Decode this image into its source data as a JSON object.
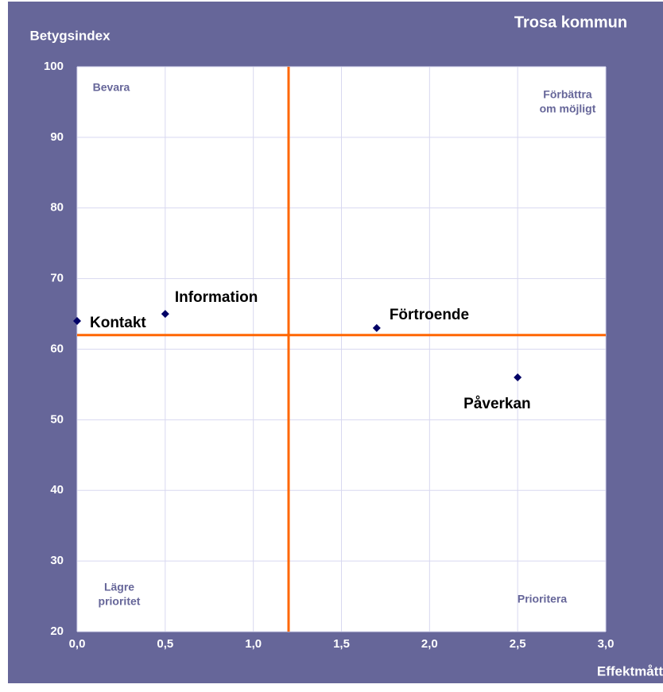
{
  "chart_data": {
    "type": "scatter",
    "title": "Trosa kommun",
    "y_label": "Betygsindex",
    "x_label": "Effektmått",
    "series": [
      {
        "names": [
          "Kontakt",
          "Information",
          "Förtroende",
          "Påverkan"
        ],
        "color": "#000066",
        "x": [
          0,
          0.5,
          1.7,
          2.5
        ],
        "values": [
          64,
          65,
          63,
          56
        ]
      }
    ],
    "xlim": [
      0,
      3
    ],
    "ylim": [
      20,
      100
    ],
    "xticks": [
      {
        "value": 0,
        "label": "0,0"
      },
      {
        "value": 0.5,
        "label": "0,5"
      },
      {
        "value": 1,
        "label": "1,0"
      },
      {
        "value": 1.5,
        "label": "1,5"
      },
      {
        "value": 2,
        "label": "2,0"
      },
      {
        "value": 2.5,
        "label": "2,5"
      },
      {
        "value": 3,
        "label": "3,0"
      }
    ],
    "yticks": [
      20,
      30,
      40,
      50,
      60,
      70,
      80,
      90,
      100
    ],
    "grid": true,
    "ref_lines": {
      "x": 1.2,
      "y": 62,
      "color": "#ff6600"
    },
    "quadrants": [
      {
        "lines": [
          "Bevara"
        ]
      },
      {
        "lines": [
          "Förbättra",
          "om möjligt"
        ]
      },
      {
        "lines": [
          "Lägre",
          "prioritet"
        ]
      },
      {
        "lines": [
          "Prioritera"
        ]
      }
    ]
  }
}
